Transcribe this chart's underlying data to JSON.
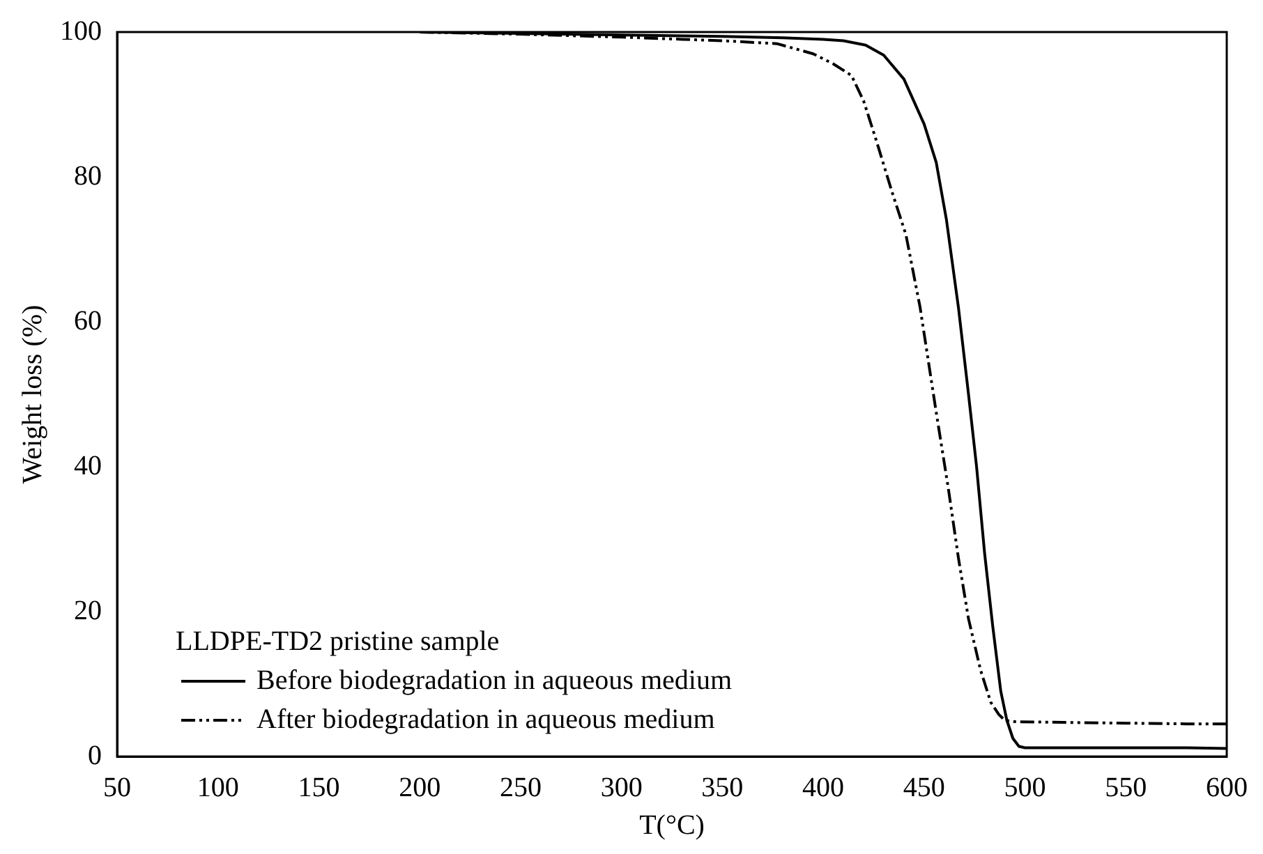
{
  "chart_data": {
    "type": "line",
    "xlabel": "T(°C)",
    "ylabel": "Weight loss (%)",
    "legend_title": "LLDPE-TD2 pristine sample",
    "xlim": [
      50,
      600
    ],
    "xticks": [
      50,
      100,
      150,
      200,
      250,
      300,
      350,
      400,
      450,
      500,
      550,
      600
    ],
    "ylim": [
      0,
      100
    ],
    "yticks": [
      0,
      20,
      40,
      60,
      80,
      100
    ],
    "grid": false,
    "legend": "bottom left",
    "marker": "none",
    "series": [
      {
        "name": "Before biodegradation in aqueous medium",
        "color": "#000000",
        "line_style": "solid",
        "x": [
          200,
          250,
          300,
          350,
          380,
          400,
          410,
          421,
          430,
          440,
          450,
          456,
          461,
          467,
          472,
          476,
          480,
          484,
          488,
          491,
          494,
          497,
          500,
          520,
          550,
          580,
          600
        ],
        "values": [
          100,
          99.8,
          99.6,
          99.4,
          99.2,
          99,
          98.8,
          98.2,
          96.8,
          93.5,
          87.3,
          82,
          74.2,
          62,
          50,
          40,
          28,
          18,
          9,
          5,
          2.5,
          1.4,
          1.2,
          1.2,
          1.2,
          1.2,
          1.1
        ]
      },
      {
        "name": "After biodegradation in aqueous medium",
        "color": "#000000",
        "line_style": "dashed",
        "x": [
          200,
          250,
          300,
          330,
          350,
          377,
          395,
          405,
          414,
          420,
          426,
          434,
          441,
          448,
          456,
          462,
          467,
          472,
          478,
          483,
          487,
          490,
          495,
          520,
          550,
          580,
          600
        ],
        "values": [
          100,
          99.7,
          99.3,
          99,
          98.8,
          98.4,
          97,
          95.6,
          94,
          90.5,
          85.3,
          78,
          72,
          62,
          47.5,
          37,
          27.4,
          19,
          11.9,
          7.5,
          5.8,
          5,
          4.8,
          4.7,
          4.6,
          4.5,
          4.5
        ]
      }
    ]
  }
}
